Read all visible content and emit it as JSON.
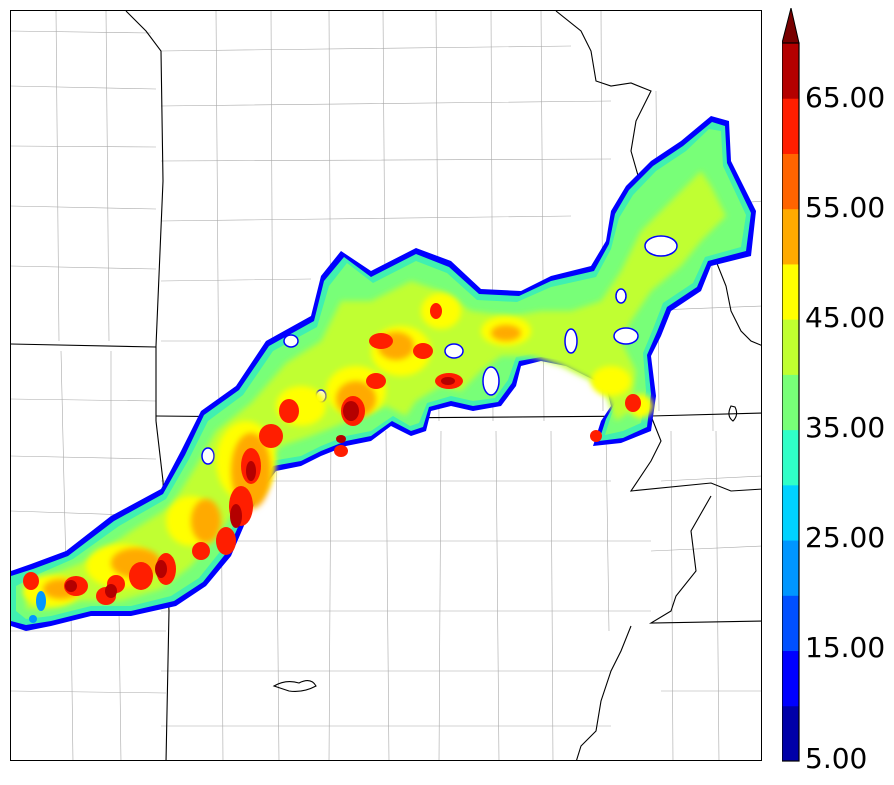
{
  "colorbar": {
    "tick_labels": [
      "65.00",
      "55.00",
      "45.00",
      "35.00",
      "25.00",
      "15.00",
      "5.00"
    ],
    "levels": [
      5,
      10,
      15,
      20,
      25,
      30,
      35,
      40,
      45,
      50,
      55,
      60,
      65,
      70
    ],
    "colors": [
      "#0000a8",
      "#0000ff",
      "#0050ff",
      "#0096ff",
      "#00d2ff",
      "#30ffc8",
      "#78ff78",
      "#c0ff30",
      "#ffff00",
      "#ffaa00",
      "#ff6400",
      "#ff1e00",
      "#b40000",
      "#780000"
    ],
    "extend": "max"
  },
  "map": {
    "boundary_color": "#000000",
    "county_color": "#9a9a9a",
    "background": "#ffffff"
  }
}
